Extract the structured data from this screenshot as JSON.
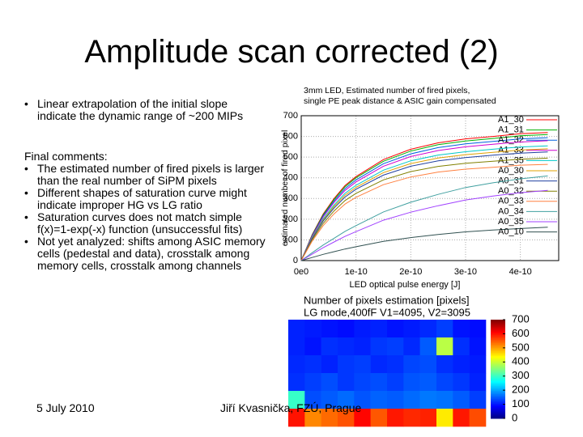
{
  "title": "Amplitude scan corrected (2)",
  "bullets": [
    "Linear extrapolation of the initial slope indicate the dynamic range of ~200 MIPs"
  ],
  "comments_heading": "Final comments:",
  "comments": [
    "The estimated number of fired pixels is larger than the real number of SiPM pixels",
    "Different shapes of saturation curve might indicate improper HG vs LG ratio",
    "Saturation curves does not match simple f(x)=1-exp(-x) function (unsuccessful fits)",
    "Not yet analyzed: shifts among ASIC memory cells (pedestal and data), crosstalk among memory cells, crosstalk among channels"
  ],
  "footer": {
    "date": "5 July 2010",
    "author": "Jiří Kvasnička, FZÚ, Prague"
  },
  "chart_data": [
    {
      "type": "line",
      "title": "3mm LED, Estimated number of fired pixels,",
      "subtitle": "single PE peak distance & ASIC gain compensated",
      "x_label": "LED optical pulse energy [J]",
      "y_label": "estimated number of fired pixel",
      "x": [
        0,
        2e-11,
        4e-11,
        6e-11,
        8e-11,
        1e-10,
        1.5e-10,
        2e-10,
        2.5e-10,
        3e-10,
        3.5e-10,
        4e-10,
        4.5e-10
      ],
      "xlim": [
        0,
        4.7e-10
      ],
      "xticks": [
        {
          "value": 0,
          "label": "0e0"
        },
        {
          "value": 1e-10,
          "label": "1e-10"
        },
        {
          "value": 2e-10,
          "label": "2e-10"
        },
        {
          "value": 3e-10,
          "label": "3e-10"
        },
        {
          "value": 4e-10,
          "label": "4e-10"
        }
      ],
      "ylim": [
        0,
        700
      ],
      "yticks": [
        0,
        100,
        200,
        300,
        400,
        500,
        600,
        700
      ],
      "grid": true,
      "legend": "upper right",
      "series": [
        {
          "name": "A1_30",
          "color": "#ff0000",
          "values": [
            0,
            125,
            225,
            300,
            363,
            406,
            488,
            538,
            569,
            588,
            600,
            613,
            619
          ]
        },
        {
          "name": "A1_31",
          "color": "#00b000",
          "values": [
            0,
            123,
            221,
            295,
            357,
            400,
            480,
            529,
            560,
            578,
            590,
            603,
            609
          ]
        },
        {
          "name": "A1_32",
          "color": "#0060e0",
          "values": [
            0,
            120,
            216,
            288,
            348,
            390,
            468,
            516,
            546,
            564,
            576,
            588,
            594
          ]
        },
        {
          "name": "A1_33",
          "color": "#d000d0",
          "values": [
            0,
            117,
            211,
            281,
            339,
            380,
            456,
            503,
            532,
            550,
            562,
            573,
            579
          ]
        },
        {
          "name": "A1_35",
          "color": "#00c8c8",
          "values": [
            0,
            112,
            202,
            269,
            325,
            364,
            437,
            482,
            510,
            526,
            538,
            549,
            554
          ]
        },
        {
          "name": "A0_30",
          "color": "#e0a000",
          "values": [
            0,
            109,
            196,
            262,
            316,
            354,
            425,
            469,
            496,
            512,
            523,
            534,
            540
          ]
        },
        {
          "name": "A0_31",
          "color": "#2040a0",
          "values": [
            0,
            106,
            191,
            254,
            307,
            345,
            413,
            456,
            482,
            498,
            509,
            519,
            525
          ]
        },
        {
          "name": "A0_32",
          "color": "#808000",
          "values": [
            0,
            100,
            180,
            240,
            290,
            325,
            390,
            430,
            455,
            470,
            480,
            490,
            495
          ]
        },
        {
          "name": "A0_33",
          "color": "#ff8040",
          "values": [
            0,
            94,
            169,
            226,
            273,
            306,
            367,
            404,
            428,
            442,
            451,
            461,
            465
          ]
        },
        {
          "name": "A0_34",
          "color": "#40a0a0",
          "values": [
            0,
            38,
            75,
            108,
            141,
            169,
            235,
            282,
            320,
            353,
            376,
            395,
            409
          ]
        },
        {
          "name": "A0_35",
          "color": "#a040ff",
          "values": [
            0,
            31,
            62,
            90,
            117,
            140,
            195,
            234,
            265,
            293,
            312,
            328,
            339
          ]
        },
        {
          "name": "A0_10",
          "color": "#305050",
          "values": [
            0,
            15,
            30,
            43,
            56,
            67,
            93,
            111,
            126,
            139,
            148,
            155,
            161
          ]
        }
      ]
    },
    {
      "type": "heatmap",
      "title": "Number of pixels estimation [pixels]",
      "subtitle": "LG mode,400fF V1=4095, V2=3095",
      "zlim": [
        0,
        700
      ],
      "zticks": [
        0,
        100,
        200,
        300,
        400,
        500,
        600,
        700
      ],
      "values": [
        [
          110,
          105,
          100,
          95,
          105,
          110,
          100,
          105,
          115,
          130,
          100,
          95
        ],
        [
          110,
          100,
          120,
          115,
          110,
          125,
          130,
          115,
          150,
          390,
          120,
          100
        ],
        [
          115,
          120,
          110,
          125,
          130,
          115,
          120,
          135,
          140,
          120,
          110,
          105
        ],
        [
          120,
          130,
          140,
          125,
          135,
          140,
          130,
          145,
          150,
          135,
          125,
          110
        ],
        [
          300,
          140,
          150,
          160,
          145,
          155,
          150,
          160,
          170,
          165,
          150,
          130
        ],
        [
          600,
          520,
          540,
          556,
          609,
          553,
          597,
          585,
          590,
          451,
          597,
          560
        ]
      ]
    }
  ]
}
